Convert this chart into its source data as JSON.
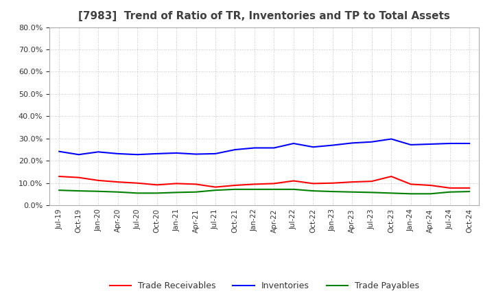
{
  "title": "[7983]  Trend of Ratio of TR, Inventories and TP to Total Assets",
  "x_labels": [
    "Jul-19",
    "Oct-19",
    "Jan-20",
    "Apr-20",
    "Jul-20",
    "Oct-20",
    "Jan-21",
    "Apr-21",
    "Jul-21",
    "Oct-21",
    "Jan-22",
    "Apr-22",
    "Jul-22",
    "Oct-22",
    "Jan-23",
    "Apr-23",
    "Jul-23",
    "Oct-23",
    "Jan-24",
    "Apr-24",
    "Jul-24",
    "Oct-24"
  ],
  "trade_receivables": [
    0.13,
    0.125,
    0.112,
    0.105,
    0.1,
    0.092,
    0.098,
    0.095,
    0.082,
    0.09,
    0.095,
    0.098,
    0.11,
    0.098,
    0.1,
    0.105,
    0.108,
    0.13,
    0.095,
    0.09,
    0.078,
    0.078
  ],
  "inventories": [
    0.242,
    0.228,
    0.24,
    0.232,
    0.228,
    0.232,
    0.235,
    0.23,
    0.232,
    0.25,
    0.258,
    0.258,
    0.278,
    0.262,
    0.27,
    0.28,
    0.285,
    0.298,
    0.272,
    0.275,
    0.278,
    0.278
  ],
  "trade_payables": [
    0.068,
    0.065,
    0.063,
    0.06,
    0.055,
    0.055,
    0.058,
    0.06,
    0.068,
    0.072,
    0.072,
    0.072,
    0.072,
    0.065,
    0.062,
    0.06,
    0.058,
    0.055,
    0.052,
    0.052,
    0.06,
    0.062
  ],
  "colors": {
    "trade_receivables": "#FF0000",
    "inventories": "#0000FF",
    "trade_payables": "#008000"
  },
  "ylim": [
    0.0,
    0.8
  ],
  "yticks": [
    0.0,
    0.1,
    0.2,
    0.3,
    0.4,
    0.5,
    0.6,
    0.7,
    0.8
  ],
  "background_color": "#FFFFFF",
  "grid_color": "#AAAAAA",
  "title_color": "#404040",
  "legend_labels": [
    "Trade Receivables",
    "Inventories",
    "Trade Payables"
  ]
}
